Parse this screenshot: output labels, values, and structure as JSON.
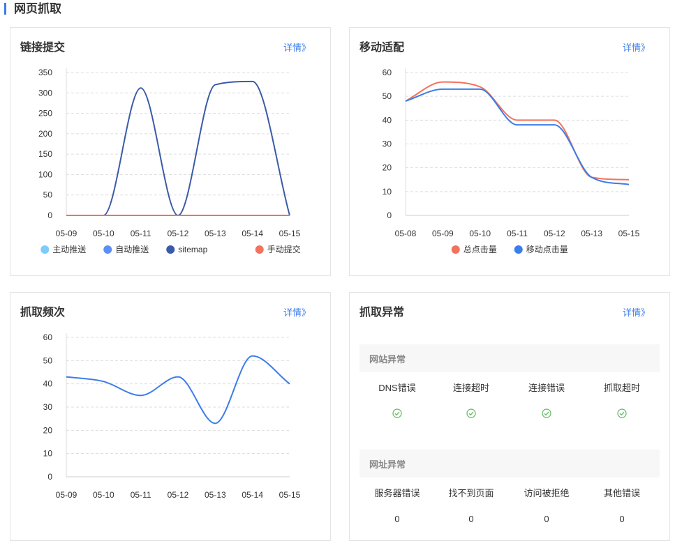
{
  "page": {
    "title": "网页抓取"
  },
  "cards": {
    "link_submit": {
      "title": "链接提交",
      "link": "详情》"
    },
    "mobile": {
      "title": "移动适配",
      "link": "详情》"
    },
    "frequency": {
      "title": "抓取频次",
      "link": "详情》"
    },
    "errors": {
      "title": "抓取异常",
      "link": "详情》"
    }
  },
  "colors": {
    "accent": "#3b7de9",
    "series_active": "#5470c6",
    "series_auto": "#5b8ff9",
    "series_sitemap": "#3a5ba8",
    "series_manual": "#f3725b",
    "series_light": "#7ecbf9",
    "ok_green": "#5fb85f"
  },
  "chart_data": [
    {
      "type": "line",
      "categories": [
        "05-09",
        "05-10",
        "05-11",
        "05-12",
        "05-13",
        "05-14",
        "05-15"
      ],
      "ylim": [
        0,
        350
      ],
      "yticks": [
        0,
        50,
        100,
        150,
        200,
        250,
        300,
        350
      ],
      "legend_position": "bottom",
      "series": [
        {
          "name": "主动推送",
          "color": "#7ecbf9",
          "values": [
            0,
            0,
            0,
            0,
            0,
            0,
            0
          ]
        },
        {
          "name": "自动推送",
          "color": "#5b8ff9",
          "values": [
            0,
            0,
            0,
            0,
            0,
            0,
            0
          ]
        },
        {
          "name": "sitemap",
          "color": "#3a5ba8",
          "values": [
            0,
            0,
            312,
            0,
            320,
            328,
            0
          ]
        },
        {
          "name": "手动提交",
          "color": "#f3725b",
          "values": [
            0,
            0,
            0,
            0,
            0,
            0,
            0
          ]
        }
      ]
    },
    {
      "type": "line",
      "categories": [
        "05-08",
        "05-09",
        "05-10",
        "05-11",
        "05-12",
        "05-13",
        "05-15"
      ],
      "ylim": [
        0,
        60
      ],
      "yticks": [
        0,
        10,
        20,
        30,
        40,
        50,
        60
      ],
      "legend_position": "bottom",
      "series": [
        {
          "name": "总点击量",
          "color": "#f3725b",
          "values": [
            48,
            56,
            54,
            40,
            40,
            16,
            15
          ]
        },
        {
          "name": "移动点击量",
          "color": "#3b7de9",
          "values": [
            48,
            53,
            53,
            38,
            38,
            16,
            13
          ]
        }
      ]
    },
    {
      "type": "line",
      "categories": [
        "05-09",
        "05-10",
        "05-11",
        "05-12",
        "05-13",
        "05-14",
        "05-15"
      ],
      "ylim": [
        0,
        60
      ],
      "yticks": [
        0,
        10,
        20,
        30,
        40,
        50,
        60
      ],
      "series": [
        {
          "color": "#3b7de9",
          "values": [
            43,
            41,
            35,
            43,
            23,
            52,
            40
          ]
        }
      ]
    }
  ],
  "errors": {
    "site_section": "网站异常",
    "site_items": [
      "DNS错误",
      "连接超时",
      "连接错误",
      "抓取超时"
    ],
    "url_section": "网址异常",
    "url_items": [
      {
        "label": "服务器错误",
        "count": "0"
      },
      {
        "label": "找不到页面",
        "count": "0"
      },
      {
        "label": "访问被拒绝",
        "count": "0"
      },
      {
        "label": "其他错误",
        "count": "0"
      }
    ]
  }
}
